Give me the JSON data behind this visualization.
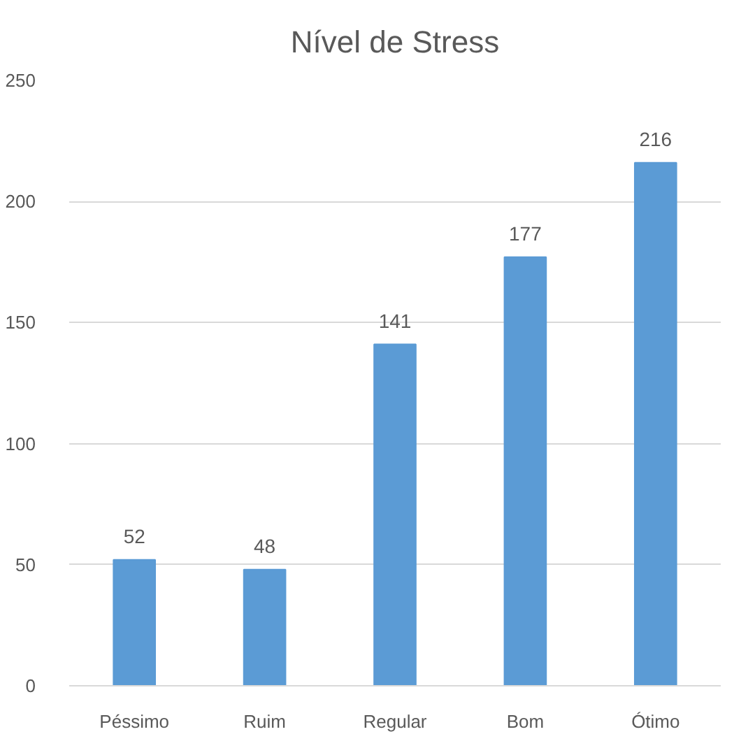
{
  "chart_data": {
    "type": "bar",
    "title": "Nível de Stress",
    "categories": [
      "Péssimo",
      "Ruim",
      "Regular",
      "Bom",
      "Ótimo"
    ],
    "values": [
      52,
      48,
      141,
      177,
      216
    ],
    "color": "#5b9bd5",
    "ylim": [
      0,
      250
    ],
    "yticks": [
      0,
      50,
      100,
      150,
      200,
      250
    ],
    "grid": "y",
    "data_labels": true
  }
}
